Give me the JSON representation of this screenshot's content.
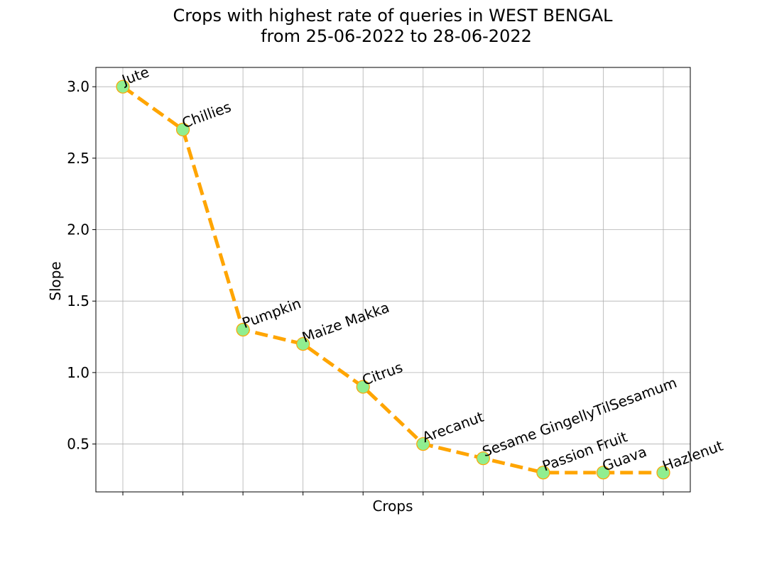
{
  "chart_data": {
    "type": "line",
    "title_line1": "Crops with highest rate of queries in WEST BENGAL",
    "title_line2": "from 25-06-2022 to 28-06-2022",
    "xlabel": "Crops",
    "ylabel": "Slope",
    "categories": [
      "Jute",
      "Chillies",
      "Pumpkin",
      "Maize Makka",
      "Citrus",
      "Arecanut",
      "Sesame GingellyTilSesamum",
      "Passion Fruit",
      "Guava",
      "Hazlenut"
    ],
    "values": [
      3.0,
      2.7,
      1.3,
      1.2,
      0.9,
      0.5,
      0.4,
      0.3,
      0.3,
      0.3
    ],
    "ylim": [
      0.165,
      3.135
    ],
    "yticks": [
      0.5,
      1.0,
      1.5,
      2.0,
      2.5,
      3.0
    ],
    "ytick_labels": [
      "0.5",
      "1.0",
      "1.5",
      "2.0",
      "2.5",
      "3.0"
    ],
    "grid": true,
    "line_color": "#FFA500",
    "line_style": "dashed",
    "marker_face_color": "#90EE90",
    "marker_edge_color": "#FFA500"
  }
}
